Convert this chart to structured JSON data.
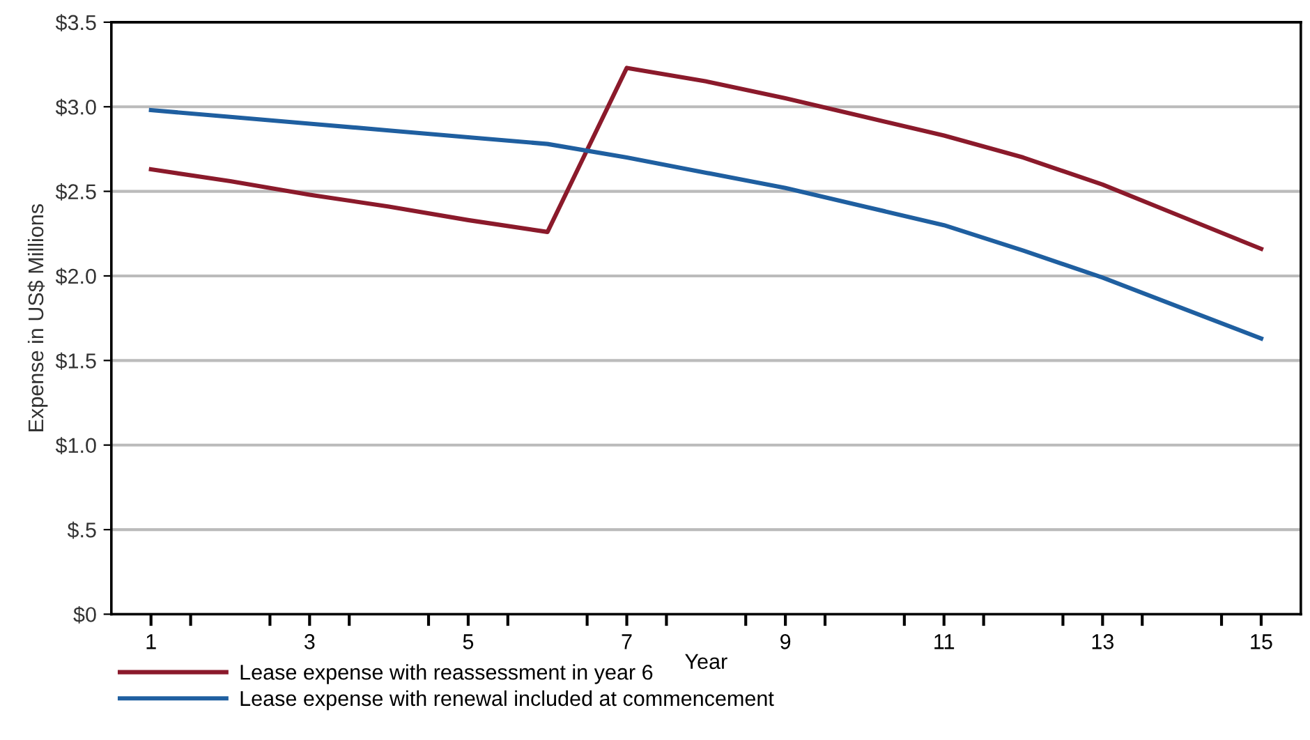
{
  "chart_data": {
    "type": "line",
    "xlabel": "Year",
    "ylabel": "Expense in US$ Millions",
    "x": [
      1,
      2,
      3,
      4,
      5,
      6,
      7,
      8,
      9,
      10,
      11,
      12,
      13,
      14,
      15
    ],
    "series": [
      {
        "name": "Lease expense with reassessment in year 6",
        "color": "#8b1a2b",
        "values": [
          2.63,
          2.56,
          2.48,
          2.41,
          2.33,
          2.26,
          3.23,
          3.15,
          3.05,
          2.94,
          2.83,
          2.7,
          2.54,
          2.35,
          2.16
        ]
      },
      {
        "name": "Lease expense with renewal included at commencement",
        "color": "#1f5fa0",
        "values": [
          2.98,
          2.94,
          2.9,
          2.86,
          2.82,
          2.78,
          2.7,
          2.61,
          2.52,
          2.41,
          2.3,
          2.15,
          1.99,
          1.81,
          1.63
        ]
      }
    ],
    "xlim": [
      0.5,
      15.5
    ],
    "xticks": [
      1,
      3,
      5,
      7,
      9,
      11,
      13,
      15,
      {
        "value": 1.5,
        "label": null
      },
      {
        "value": 2.5,
        "label": null
      },
      {
        "value": 3.5,
        "label": null
      },
      {
        "value": 4.5,
        "label": null
      },
      {
        "value": 5.5,
        "label": null
      },
      {
        "value": 6.5,
        "label": null
      },
      {
        "value": 7.5,
        "label": null
      },
      {
        "value": 8.5,
        "label": null
      },
      {
        "value": 9.5,
        "label": null
      },
      {
        "value": 10.5,
        "label": null
      },
      {
        "value": 11.5,
        "label": null
      },
      {
        "value": 12.5,
        "label": null
      },
      {
        "value": 13.5,
        "label": null
      },
      {
        "value": 14.5,
        "label": null
      }
    ],
    "ylim": [
      0,
      3.5
    ],
    "yticks": [
      {
        "value": 0,
        "label": "$0"
      },
      {
        "value": 0.5,
        "label": "$.5"
      },
      {
        "value": 1.0,
        "label": "$1.0"
      },
      {
        "value": 1.5,
        "label": "$1.5"
      },
      {
        "value": 2.0,
        "label": "$2.0"
      },
      {
        "value": 2.5,
        "label": "$2.5"
      },
      {
        "value": 3.0,
        "label": "$3.0"
      },
      {
        "value": 3.5,
        "label": "$3.5"
      }
    ],
    "grid": "y",
    "legend": "bottom left",
    "marker": "none",
    "line_style": "solid"
  }
}
